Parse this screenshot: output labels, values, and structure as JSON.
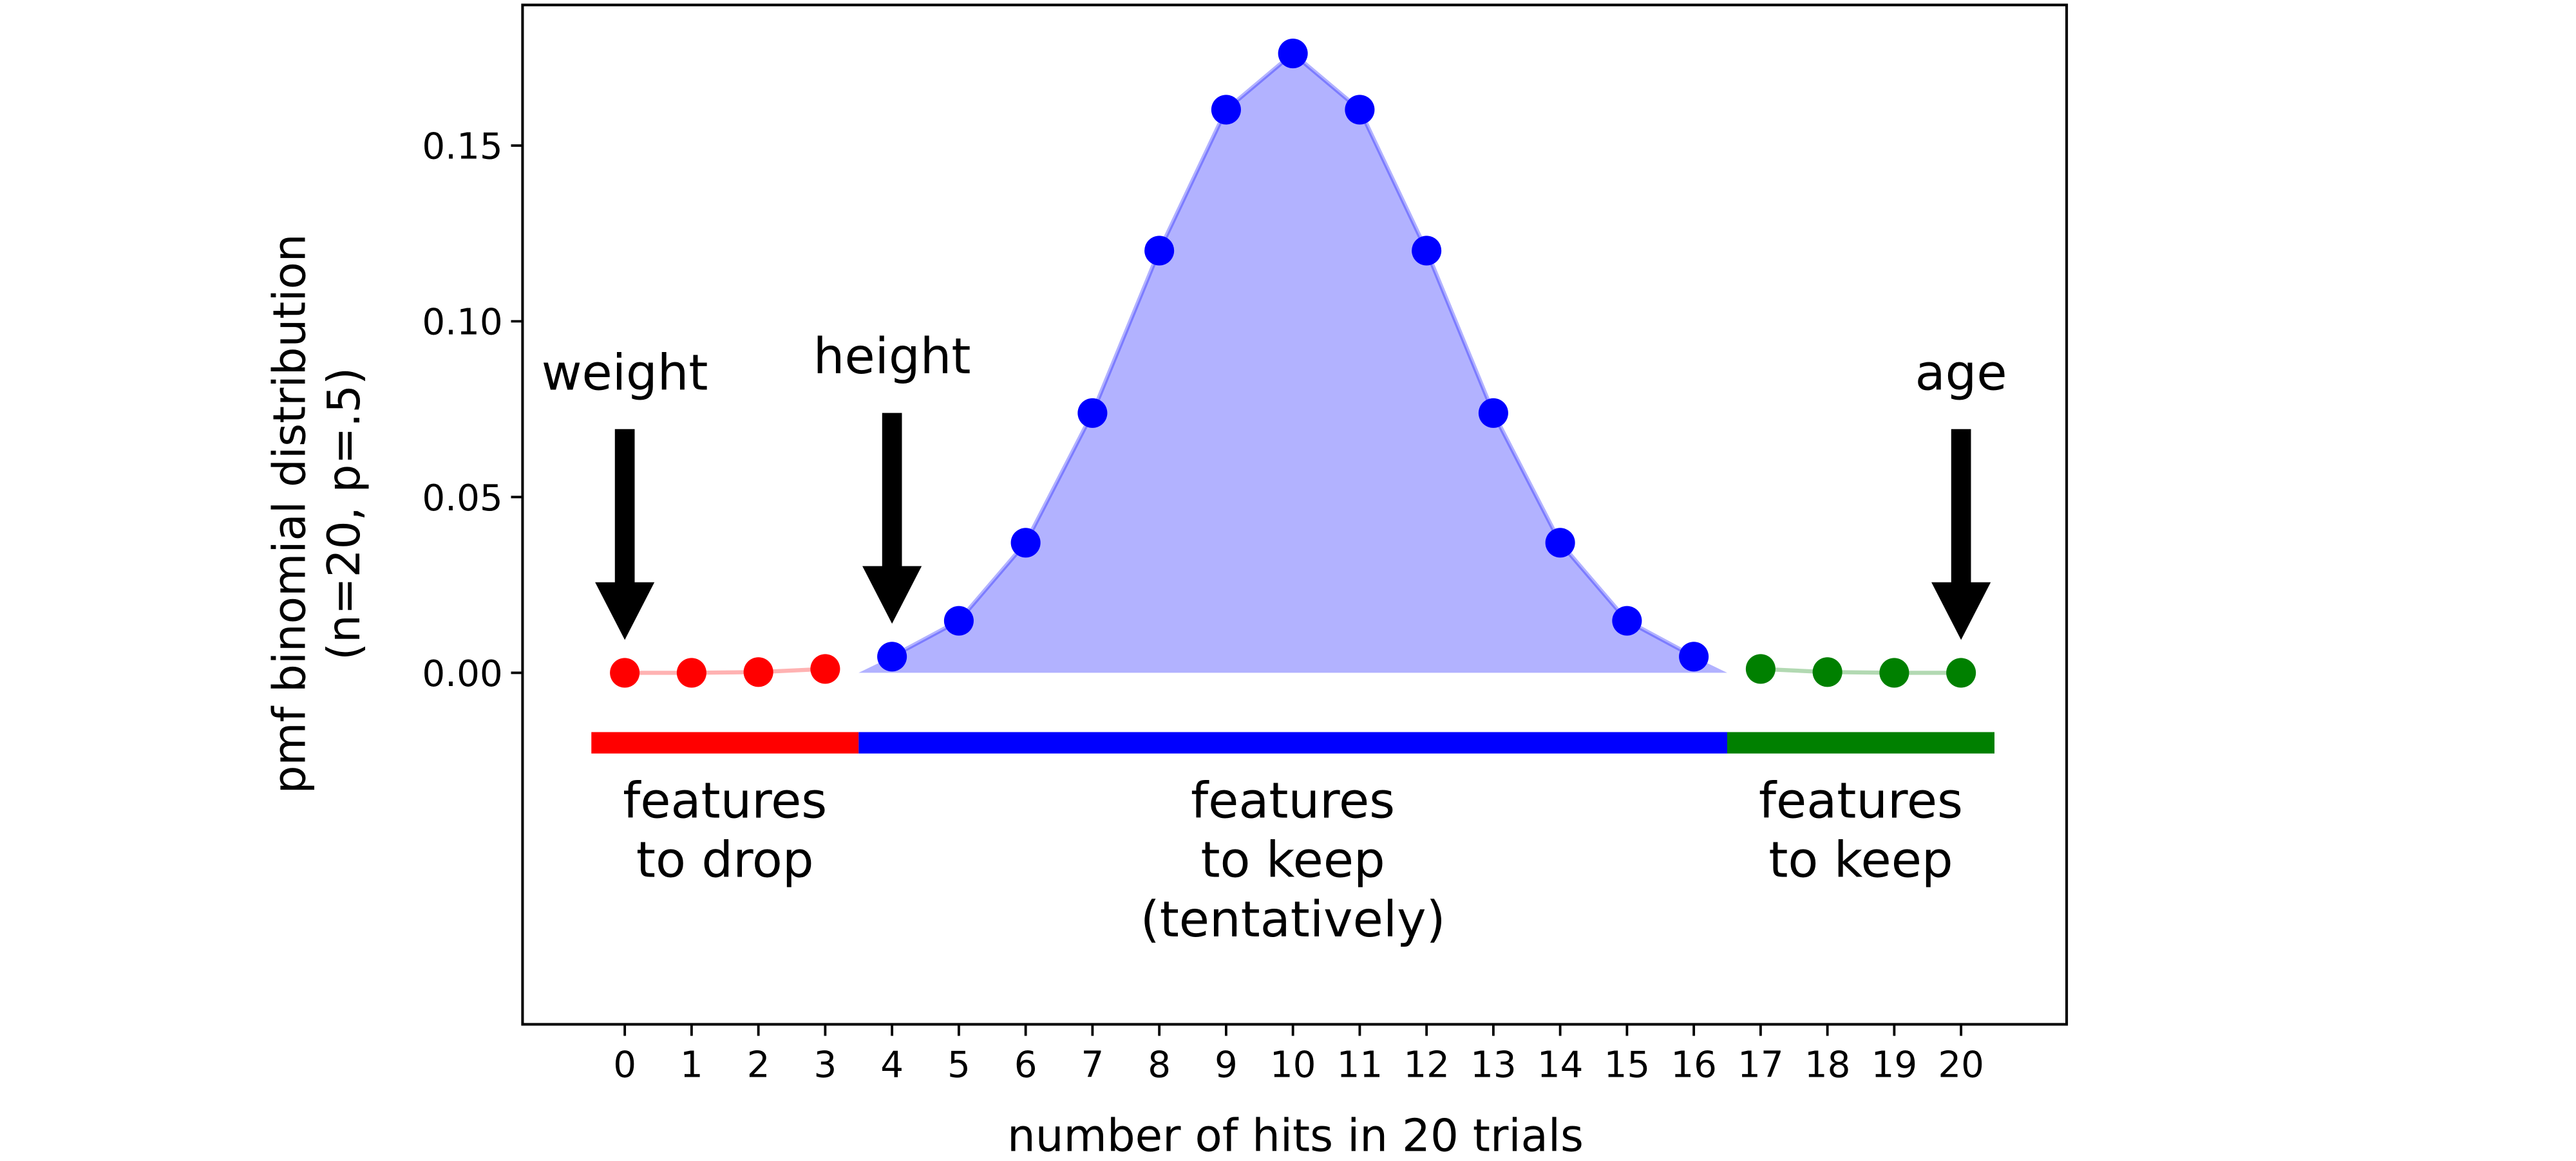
{
  "chart_data": {
    "type": "scatter",
    "xlabel": "number of hits in 20 trials",
    "ylabel": [
      "pmf binomial distribution",
      "(n=20, p=.5)"
    ],
    "xlim": [
      -1.53,
      21.58
    ],
    "ylim": [
      -0.1,
      0.19
    ],
    "xticks": [
      0,
      1,
      2,
      3,
      4,
      5,
      6,
      7,
      8,
      9,
      10,
      11,
      12,
      13,
      14,
      15,
      16,
      17,
      18,
      19,
      20
    ],
    "yticks": [
      {
        "value": 0,
        "label": "0.00"
      },
      {
        "value": 0.05,
        "label": "0.05"
      },
      {
        "value": 0.1,
        "label": "0.10"
      },
      {
        "value": 0.15,
        "label": "0.15"
      }
    ],
    "series": [
      {
        "color": "#ff0000",
        "x": [
          0,
          1,
          2,
          3
        ],
        "values": [
          0.0,
          0.0,
          0.0002,
          0.0011
        ]
      },
      {
        "color": "#0000ff",
        "x": [
          4,
          5,
          6,
          7,
          8,
          9,
          10,
          11,
          12,
          13,
          14,
          15,
          16
        ],
        "values": [
          0.0046,
          0.0148,
          0.037,
          0.0739,
          0.1201,
          0.1602,
          0.1762,
          0.1602,
          0.1201,
          0.0739,
          0.037,
          0.0148,
          0.0046
        ]
      },
      {
        "color": "#008000",
        "x": [
          17,
          18,
          19,
          20
        ],
        "values": [
          0.0011,
          0.0002,
          0.0,
          0.0
        ]
      }
    ],
    "bands": [
      {
        "x0": -0.5,
        "x1": 3.5,
        "color": "#ff0000",
        "label": [
          "features",
          "to drop"
        ]
      },
      {
        "x0": 3.5,
        "x1": 16.5,
        "color": "#0000ff",
        "label": [
          "features",
          "to keep",
          "(tentatively)"
        ]
      },
      {
        "x0": 16.5,
        "x1": 20.5,
        "color": "#008000",
        "label": [
          "features",
          "to keep"
        ]
      }
    ],
    "annotations": [
      {
        "text": "weight",
        "x": 0
      },
      {
        "text": "height",
        "x": 4
      },
      {
        "text": "age",
        "x": 20
      }
    ]
  }
}
